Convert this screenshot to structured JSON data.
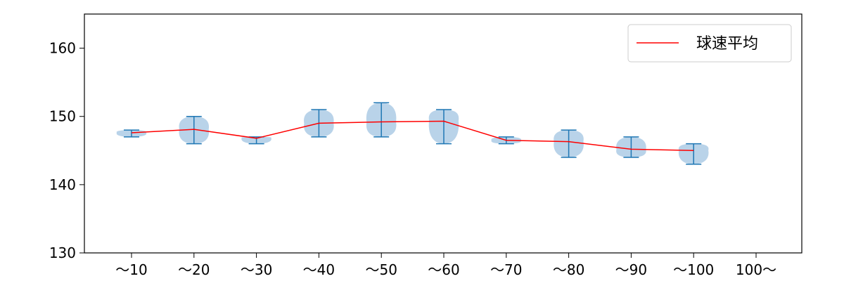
{
  "chart_data": {
    "type": "violin",
    "title": "",
    "xlabel": "",
    "ylabel": "",
    "categories": [
      "～10",
      "～20",
      "～30",
      "～40",
      "～50",
      "～60",
      "～70",
      "～80",
      "～90",
      "～100",
      "100～"
    ],
    "ylim": [
      130,
      165
    ],
    "yticks": [
      130,
      140,
      150,
      160
    ],
    "grid": false,
    "legend": {
      "position": "top-right",
      "entries": [
        "球速平均"
      ]
    },
    "series": [
      {
        "name": "球速平均",
        "type": "line",
        "color": "#ff0000",
        "values": [
          147.6,
          148.1,
          146.8,
          149.0,
          149.2,
          149.3,
          146.5,
          146.3,
          145.2,
          145.0,
          null
        ]
      }
    ],
    "distributions": [
      {
        "category": "～10",
        "min": 147,
        "max": 148,
        "mean": 147.6
      },
      {
        "category": "～20",
        "min": 146,
        "max": 150,
        "mean": 148.1
      },
      {
        "category": "～30",
        "min": 146,
        "max": 147,
        "mean": 146.8
      },
      {
        "category": "～40",
        "min": 147,
        "max": 151,
        "mean": 149.0
      },
      {
        "category": "～50",
        "min": 147,
        "max": 152,
        "mean": 149.2
      },
      {
        "category": "～60",
        "min": 146,
        "max": 151,
        "mean": 149.3
      },
      {
        "category": "～70",
        "min": 146,
        "max": 147,
        "mean": 146.5
      },
      {
        "category": "～80",
        "min": 144,
        "max": 148,
        "mean": 146.3
      },
      {
        "category": "～90",
        "min": 144,
        "max": 147,
        "mean": 145.2
      },
      {
        "category": "～100",
        "min": 143,
        "max": 146,
        "mean": 145.0
      },
      {
        "category": "100～",
        "min": null,
        "max": null,
        "mean": null
      }
    ],
    "colors": {
      "violin_fill": "#a7c8e4",
      "violin_line": "#1f77b4",
      "mean_line": "#ff0000"
    }
  }
}
